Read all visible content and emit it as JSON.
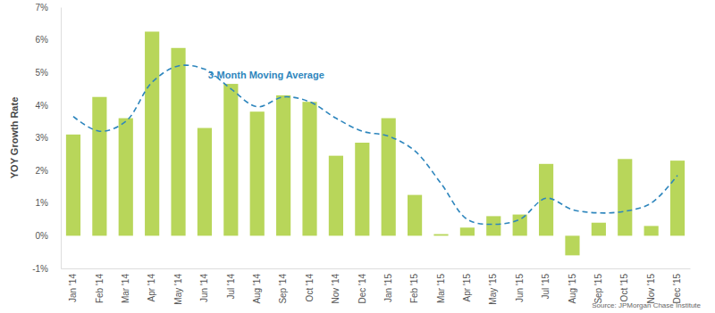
{
  "chart_data": {
    "type": "bar",
    "y_label": "YOY Growth Rate",
    "source": "Source:  JPMorgan Chase Institute",
    "categories": [
      "Jan '14",
      "Feb '14",
      "Mar '14",
      "Apr '14",
      "May '14",
      "Jun '14",
      "Jul '14",
      "Aug '14",
      "Sep '14",
      "Oct '14",
      "Nov '14",
      "Dec '14",
      "Jan '15",
      "Feb '15",
      "Mar '15",
      "Apr '15",
      "May '15",
      "Jun '15",
      "Jul '15",
      "Aug '15",
      "Sep '15",
      "Oct '15",
      "Nov '15",
      "Dec '15"
    ],
    "series": [
      {
        "type": "bar",
        "color": "#b8d65a",
        "values": [
          3.1,
          4.25,
          3.6,
          6.25,
          5.75,
          3.3,
          4.65,
          3.8,
          4.3,
          4.1,
          2.45,
          2.85,
          3.6,
          1.25,
          0.05,
          0.25,
          0.6,
          0.65,
          2.2,
          -0.6,
          0.4,
          2.35,
          0.3,
          2.3
        ]
      },
      {
        "name": "3-Month Moving Average",
        "type": "line",
        "color": "#2e86bd",
        "line_style": "dashed",
        "values": [
          3.65,
          3.2,
          3.5,
          4.7,
          5.2,
          5.1,
          4.5,
          3.95,
          4.25,
          4.1,
          3.6,
          3.2,
          3.05,
          2.6,
          1.6,
          0.5,
          0.35,
          0.5,
          1.15,
          0.8,
          0.7,
          0.75,
          1.0,
          1.85
        ]
      }
    ],
    "ylim": [
      -1,
      7
    ],
    "yticks": [
      {
        "value": -1,
        "label": "-1%"
      },
      {
        "value": 0,
        "label": "0%"
      },
      {
        "value": 1,
        "label": "1%"
      },
      {
        "value": 2,
        "label": "2%"
      },
      {
        "value": 3,
        "label": "3%"
      },
      {
        "value": 4,
        "label": "4%"
      },
      {
        "value": 5,
        "label": "5%"
      },
      {
        "value": 6,
        "label": "6%"
      },
      {
        "value": 7,
        "label": "7%"
      }
    ],
    "grid": false
  }
}
